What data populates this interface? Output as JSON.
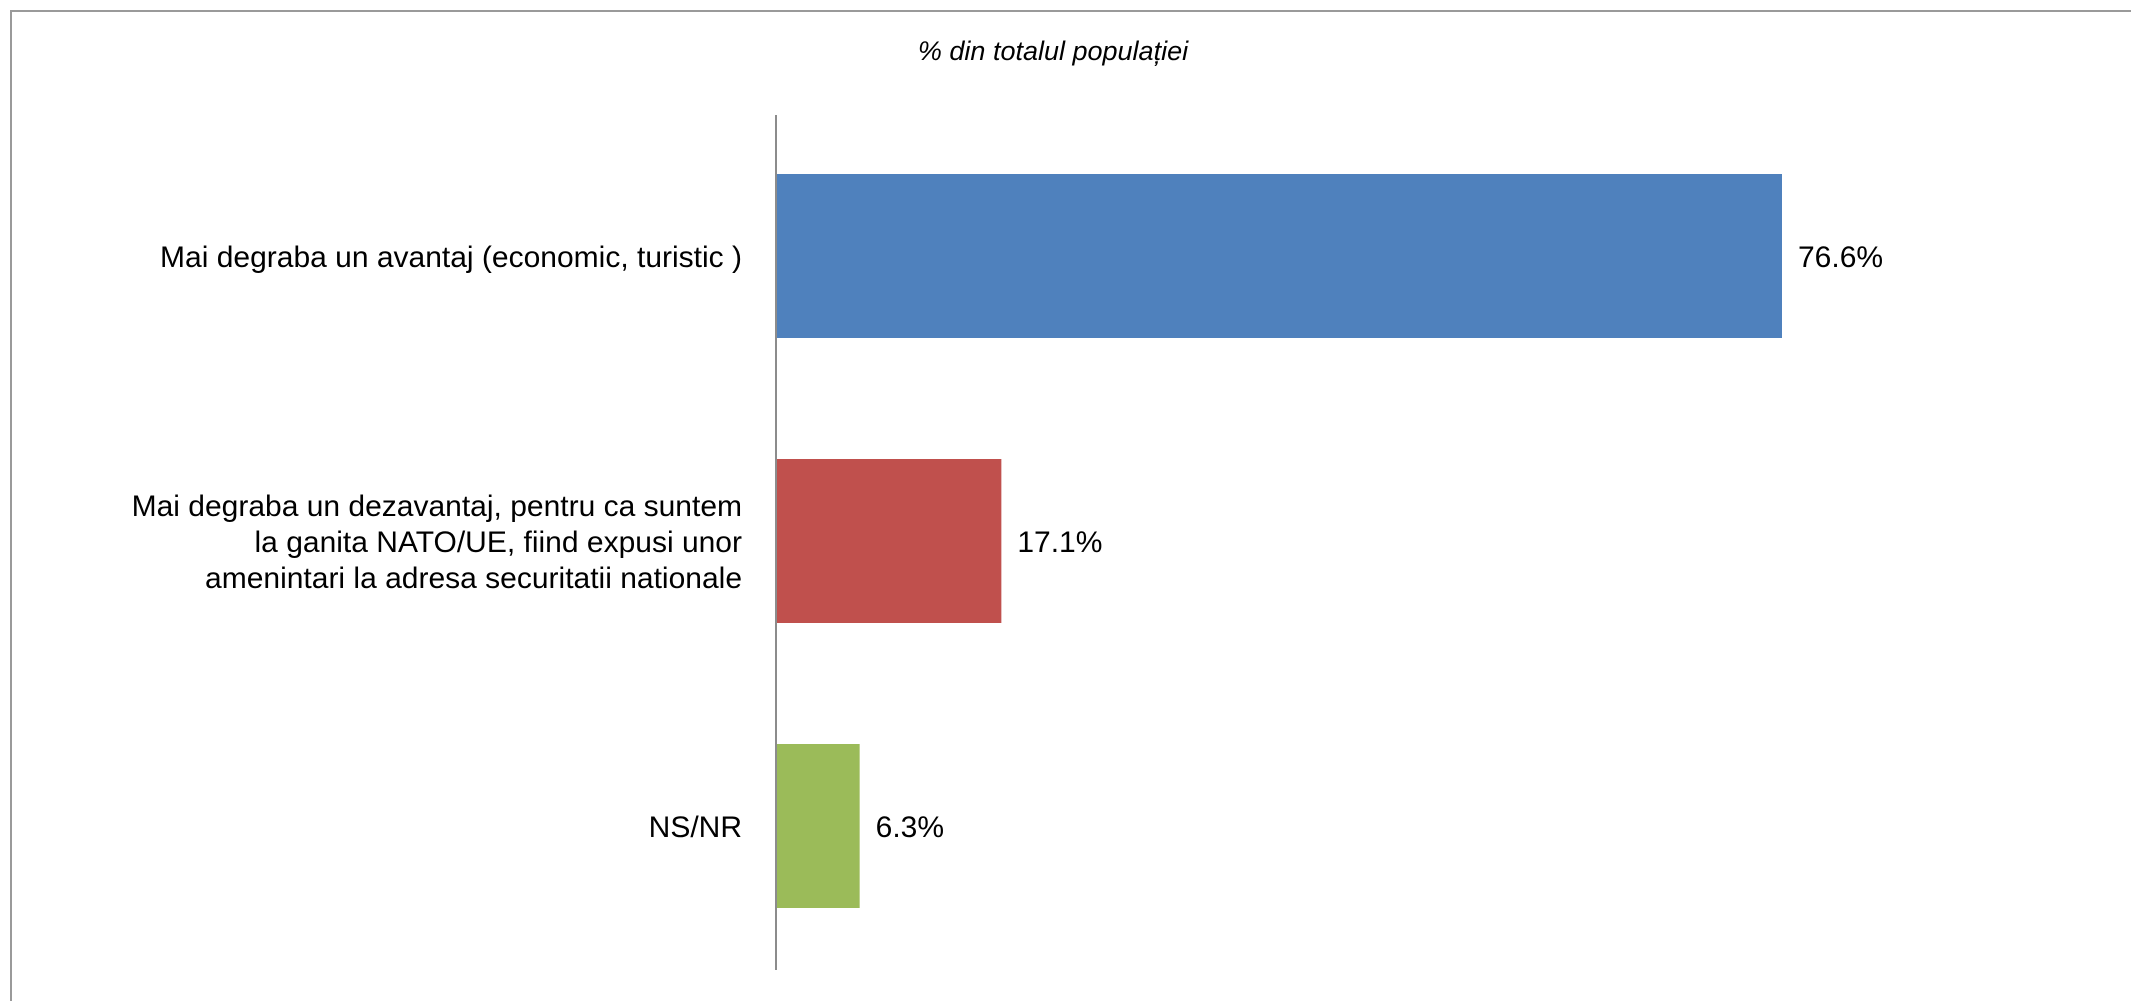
{
  "chart_data": {
    "type": "bar",
    "orientation": "horizontal",
    "subtitle": "% din totalul populației",
    "categories": [
      [
        "Mai degraba un avantaj (economic, turistic )"
      ],
      [
        "Mai degraba un dezavantaj, pentru ca suntem",
        "la ganita NATO/UE, fiind expusi unor",
        "amenintari la adresa securitatii nationale"
      ],
      [
        "NS/NR"
      ]
    ],
    "values": [
      76.6,
      17.1,
      6.3
    ],
    "value_labels": [
      "76.6%",
      "17.1%",
      "6.3%"
    ],
    "colors": [
      "#4f81bd",
      "#c0504d",
      "#9bbb59"
    ],
    "xlim": [
      0,
      100
    ],
    "grid": false,
    "legend": "none"
  }
}
